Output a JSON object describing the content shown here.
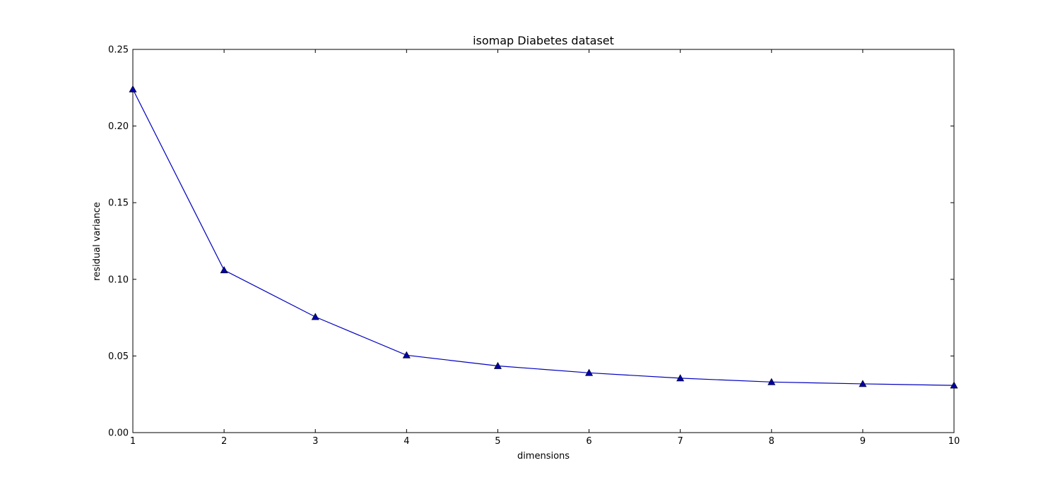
{
  "chart_data": {
    "type": "line",
    "title": "isomap Diabetes dataset",
    "xlabel": "dimensions",
    "ylabel": "residual variance",
    "xlim": [
      1,
      10
    ],
    "ylim": [
      0,
      0.25
    ],
    "xticks": [
      1,
      2,
      3,
      4,
      5,
      6,
      7,
      8,
      9,
      10
    ],
    "xtick_labels": [
      "1",
      "2",
      "3",
      "4",
      "5",
      "6",
      "7",
      "8",
      "9",
      "10"
    ],
    "yticks": [
      0,
      0.05,
      0.1,
      0.15,
      0.2,
      0.25
    ],
    "ytick_labels": [
      "0.00",
      "0.05",
      "0.10",
      "0.15",
      "0.20",
      "0.25"
    ],
    "grid": false,
    "marker": "triangle",
    "series": [
      {
        "x": [
          1,
          2,
          3,
          4,
          5,
          6,
          7,
          8,
          9,
          10
        ],
        "values": [
          0.224,
          0.106,
          0.0755,
          0.0505,
          0.0435,
          0.039,
          0.0355,
          0.033,
          0.0318,
          0.0308
        ],
        "color": "#0000bf",
        "marker_color": "#0000aa"
      }
    ]
  }
}
